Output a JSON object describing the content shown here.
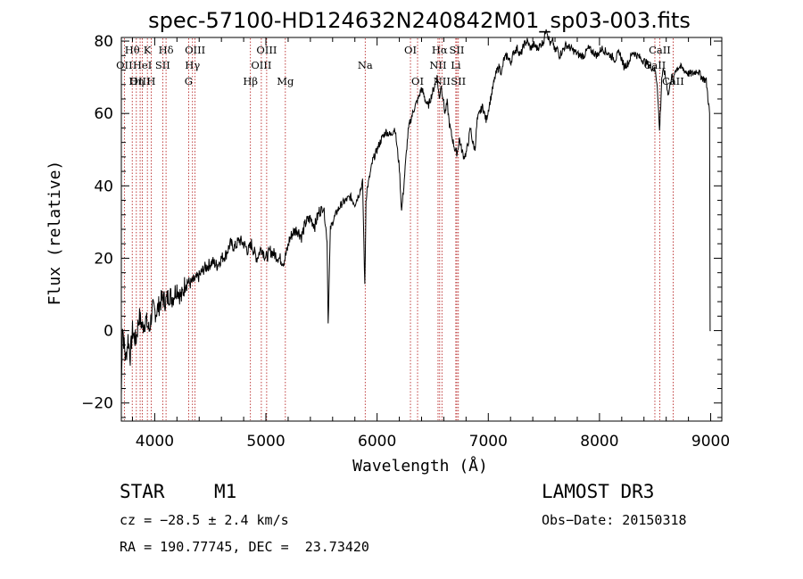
{
  "chart_data": {
    "type": "line",
    "title": "spec-57100-HD124632N240842M01_sp03-003.fits",
    "xlabel": "Wavelength (Å)",
    "ylabel": "Flux (relative)",
    "xlim": [
      3700,
      9100
    ],
    "ylim": [
      -25,
      81
    ],
    "xticks": [
      4000,
      5000,
      6000,
      7000,
      8000,
      9000
    ],
    "yticks": [
      -20,
      0,
      20,
      40,
      60,
      80
    ],
    "series": [
      {
        "name": "flux",
        "x": [
          3700,
          3710,
          3725,
          3740,
          3760,
          3780,
          3800,
          3830,
          3860,
          3890,
          3920,
          3950,
          3980,
          4010,
          4040,
          4070,
          4100,
          4130,
          4160,
          4200,
          4240,
          4280,
          4320,
          4360,
          4400,
          4440,
          4480,
          4520,
          4560,
          4600,
          4640,
          4680,
          4720,
          4760,
          4800,
          4840,
          4870,
          4890,
          4920,
          4960,
          5000,
          5040,
          5080,
          5120,
          5160,
          5190,
          5210,
          5240,
          5280,
          5320,
          5360,
          5400,
          5440,
          5480,
          5520,
          5550,
          5560,
          5580,
          5600,
          5640,
          5680,
          5720,
          5760,
          5800,
          5840,
          5870,
          5890,
          5900,
          5910,
          5930,
          5960,
          6000,
          6040,
          6080,
          6120,
          6160,
          6200,
          6220,
          6240,
          6260,
          6280,
          6290,
          6300,
          6320,
          6340,
          6370,
          6400,
          6430,
          6460,
          6490,
          6520,
          6540,
          6560,
          6575,
          6590,
          6610,
          6630,
          6650,
          6670,
          6700,
          6720,
          6740,
          6760,
          6780,
          6800,
          6820,
          6840,
          6860,
          6880,
          6900,
          6920,
          6950,
          6980,
          7000,
          7020,
          7040,
          7060,
          7080,
          7100,
          7120,
          7140,
          7170,
          7200,
          7230,
          7260,
          7290,
          7320,
          7350,
          7380,
          7410,
          7440,
          7470,
          7500,
          7520,
          7540,
          7560,
          7580,
          7600,
          7620,
          7640,
          7660,
          7700,
          7740,
          7780,
          7820,
          7860,
          7900,
          7940,
          7980,
          8020,
          8060,
          8100,
          8140,
          8180,
          8220,
          8260,
          8300,
          8340,
          8380,
          8420,
          8460,
          8500,
          8520,
          8540,
          8550,
          8560,
          8580,
          8600,
          8620,
          8650,
          8662,
          8680,
          8720,
          8760,
          8800,
          8840,
          8880,
          8920,
          8960,
          8990,
          8995,
          9000
        ],
        "values": [
          -18,
          2,
          -4,
          -8,
          -2,
          -7,
          0,
          -3,
          4,
          1,
          3,
          0,
          6,
          5,
          7,
          9,
          8,
          10,
          9,
          12,
          9,
          14,
          13,
          14,
          15,
          17,
          18,
          19,
          18,
          20,
          21,
          24,
          23,
          25,
          24,
          22,
          24,
          22,
          20,
          23,
          20,
          22,
          21,
          20,
          19,
          22,
          25,
          27,
          28,
          26,
          30,
          31,
          29,
          33,
          34,
          25,
          2,
          28,
          30,
          33,
          35,
          36,
          37,
          35,
          38,
          41,
          12,
          36,
          39,
          42,
          47,
          50,
          53,
          55,
          54,
          56,
          45,
          33,
          40,
          48,
          55,
          57,
          58,
          60,
          62,
          64,
          67,
          64,
          62,
          65,
          68,
          70,
          64,
          68,
          65,
          60,
          63,
          57,
          54,
          50,
          49,
          53,
          50,
          48,
          49,
          52,
          56,
          52,
          50,
          58,
          60,
          62,
          58,
          61,
          64,
          67,
          70,
          72,
          73,
          71,
          75,
          76,
          74,
          77,
          78,
          76,
          79,
          80,
          78,
          79,
          78,
          79,
          80,
          84,
          81,
          79,
          80,
          77,
          78,
          76,
          77,
          79,
          78,
          77,
          76,
          76,
          78,
          77,
          76,
          78,
          77,
          76,
          75,
          77,
          73,
          74,
          77,
          76,
          75,
          74,
          73,
          72,
          68,
          55,
          62,
          70,
          72,
          69,
          65,
          71,
          68,
          72,
          73,
          72,
          71,
          71,
          72,
          70,
          69,
          60,
          0,
          0
        ]
      }
    ],
    "lines": [
      {
        "label": "Hθ",
        "x": 3798,
        "row": 1
      },
      {
        "label": "OII",
        "x": 3727,
        "row": 2
      },
      {
        "label": "OIII",
        "x": 3869,
        "row": 3
      },
      {
        "label": "K",
        "x": 3934,
        "row": 1
      },
      {
        "label": "H",
        "x": 3968,
        "row": 3
      },
      {
        "label": "HeI",
        "x": 3889,
        "row": 2
      },
      {
        "label": "Hη",
        "x": 3835,
        "row": 3
      },
      {
        "label": "Hδ",
        "x": 4102,
        "row": 1
      },
      {
        "label": "SII",
        "x": 4072,
        "row": 2
      },
      {
        "label": "OIII",
        "x": 4363,
        "row": 1
      },
      {
        "label": "Hγ",
        "x": 4340,
        "row": 2
      },
      {
        "label": "G",
        "x": 4305,
        "row": 3
      },
      {
        "label": "Hβ",
        "x": 4861,
        "row": 3
      },
      {
        "label": "OIII",
        "x": 5007,
        "row": 1
      },
      {
        "label": "OIII",
        "x": 4959,
        "row": 2
      },
      {
        "label": "Mg",
        "x": 5175,
        "row": 3
      },
      {
        "label": "Na",
        "x": 5893,
        "row": 2
      },
      {
        "label": "OI",
        "x": 6300,
        "row": 1
      },
      {
        "label": "OI",
        "x": 6364,
        "row": 3
      },
      {
        "label": "Hα",
        "x": 6563,
        "row": 1
      },
      {
        "label": "SII",
        "x": 6717,
        "row": 1
      },
      {
        "label": "NII",
        "x": 6548,
        "row": 2
      },
      {
        "label": "Li",
        "x": 6708,
        "row": 2
      },
      {
        "label": "NII",
        "x": 6583,
        "row": 3
      },
      {
        "label": "SII",
        "x": 6731,
        "row": 3
      },
      {
        "label": "CaII",
        "x": 8542,
        "row": 1
      },
      {
        "label": "CaII",
        "x": 8498,
        "row": 2
      },
      {
        "label": "CaII",
        "x": 8662,
        "row": 3
      }
    ]
  },
  "info": {
    "object_class": "STAR",
    "subclass": "M1",
    "survey": "LAMOST DR3",
    "cz": "cz = −28.5 ± 2.4 km/s",
    "obs_date": "Obs−Date: 20150318",
    "coords": "RA = 190.77745, DEC =  23.73420"
  },
  "colors": {
    "line_marker": "#b01010",
    "spectrum": "#000000"
  }
}
